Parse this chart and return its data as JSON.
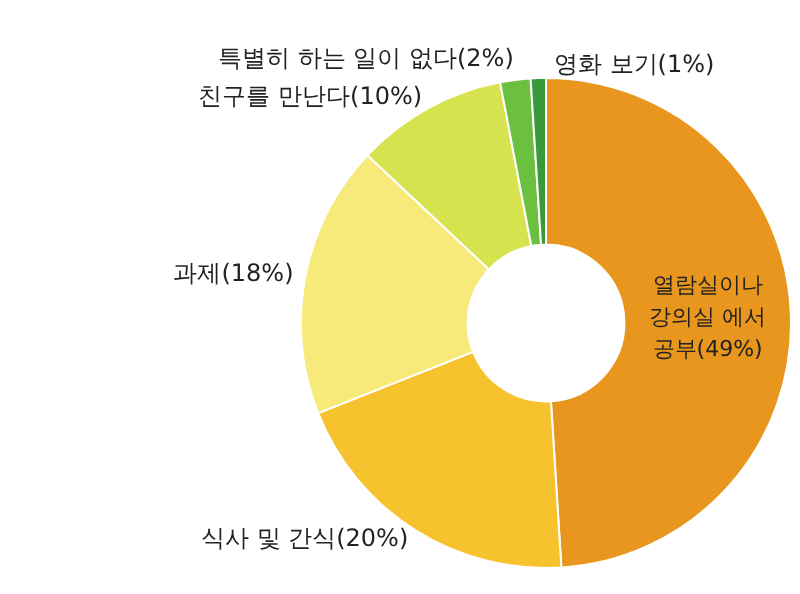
{
  "chart_data": {
    "type": "donut",
    "categories": [
      "열람실이나 강의실 에서 공부",
      "식사 및 간식",
      "과제",
      "친구를 만난다",
      "특별히 하는 일이 없다",
      "영화 보기"
    ],
    "values": [
      49,
      20,
      18,
      10,
      2,
      1
    ],
    "value_labels": [
      "(49%)",
      "(20%)",
      "(18%)",
      "(10%)",
      "(2%)",
      "(1%)"
    ],
    "colors": [
      "#e8961e",
      "#f6c22e",
      "#f7ea7a",
      "#d6e24e",
      "#6cc040",
      "#3a9a3a"
    ],
    "legend": false
  }
}
